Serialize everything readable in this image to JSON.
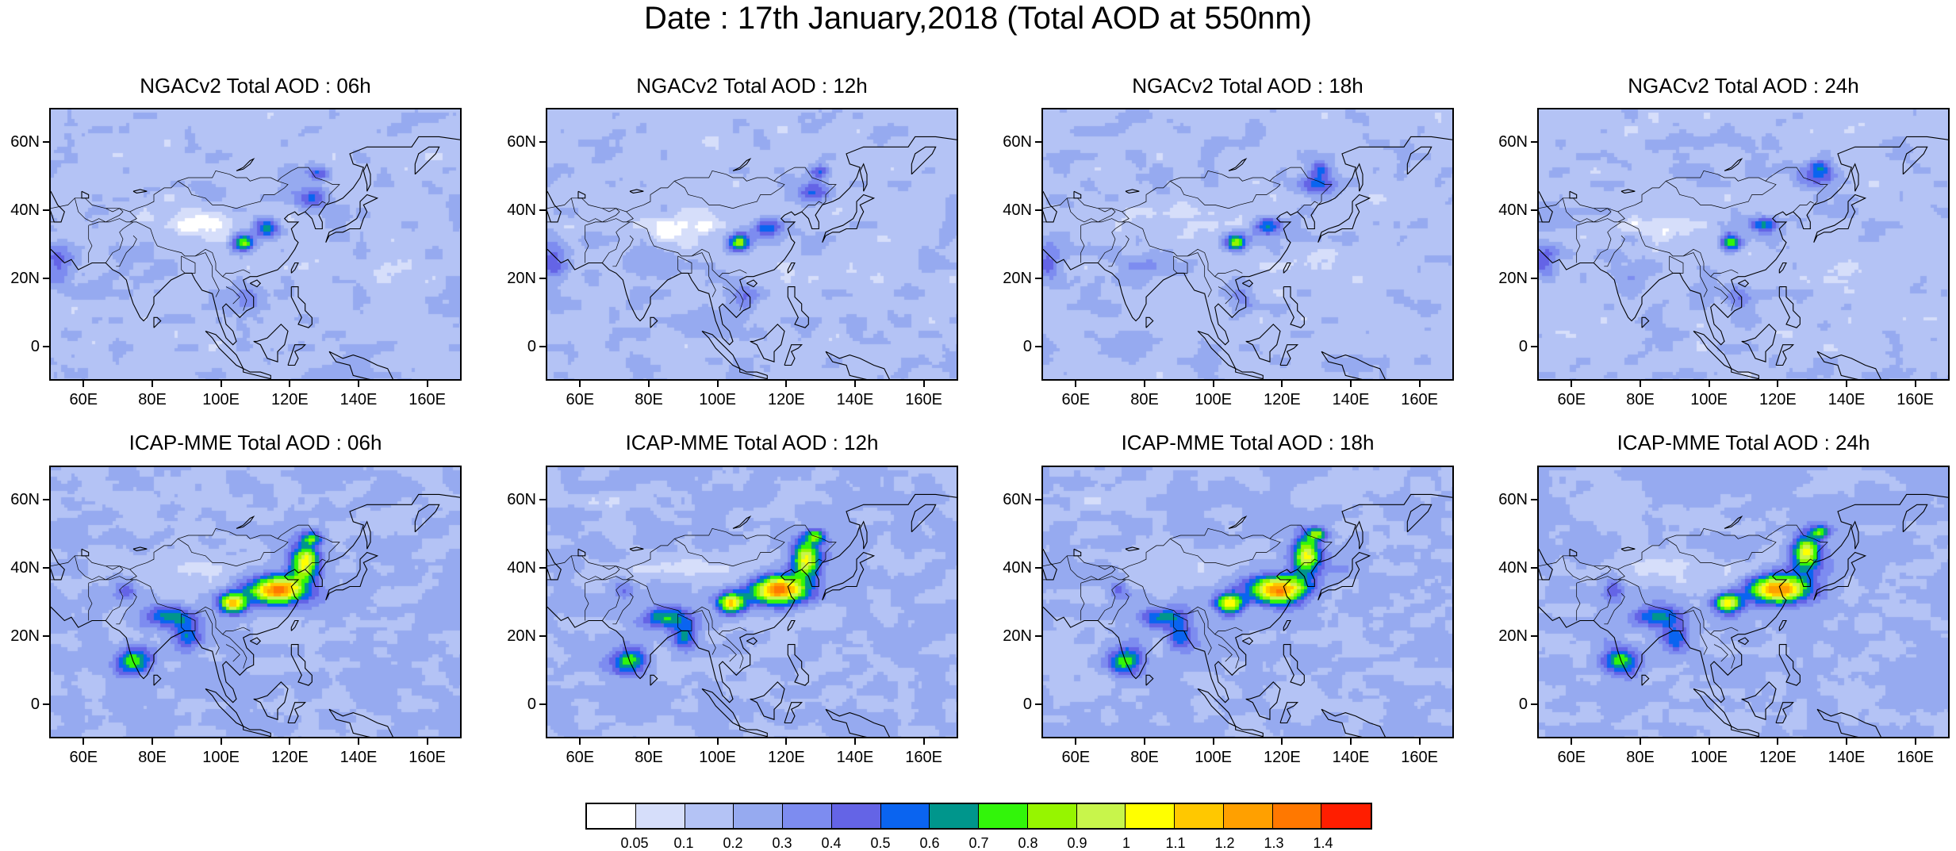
{
  "title": "Date : 17th January,2018 (Total AOD at 550nm)",
  "panels": [
    {
      "title": "NGACv2 Total AOD : 06h",
      "model": "NGACv2",
      "hour": 6
    },
    {
      "title": "NGACv2 Total AOD : 12h",
      "model": "NGACv2",
      "hour": 12
    },
    {
      "title": "NGACv2 Total AOD : 18h",
      "model": "NGACv2",
      "hour": 18
    },
    {
      "title": "NGACv2 Total AOD : 24h",
      "model": "NGACv2",
      "hour": 24
    },
    {
      "title": "ICAP-MME Total AOD : 06h",
      "model": "ICAP-MME",
      "hour": 6
    },
    {
      "title": "ICAP-MME Total AOD : 12h",
      "model": "ICAP-MME",
      "hour": 12
    },
    {
      "title": "ICAP-MME Total AOD : 18h",
      "model": "ICAP-MME",
      "hour": 18
    },
    {
      "title": "ICAP-MME Total AOD : 24h",
      "model": "ICAP-MME",
      "hour": 24
    }
  ],
  "axes": {
    "lat_labels": [
      "60N",
      "40N",
      "20N",
      "0"
    ],
    "lat_values": [
      60,
      40,
      20,
      0
    ],
    "lon_labels": [
      "60E",
      "80E",
      "100E",
      "120E",
      "140E",
      "160E"
    ],
    "lon_values": [
      60,
      80,
      100,
      120,
      140,
      160
    ],
    "lon_range": [
      50,
      170
    ],
    "lat_range": [
      -10,
      70
    ]
  },
  "colorbar": {
    "labels": [
      "0.05",
      "0.1",
      "0.2",
      "0.3",
      "0.4",
      "0.5",
      "0.6",
      "0.7",
      "0.8",
      "0.9",
      "1",
      "1.1",
      "1.2",
      "1.3",
      "1.4"
    ],
    "colors": [
      "#ffffff",
      "#d6defa",
      "#b4c3f5",
      "#96aaf0",
      "#7d8cf0",
      "#6464e6",
      "#0a64f0",
      "#00968c",
      "#32f50a",
      "#96f500",
      "#c8f54b",
      "#ffff00",
      "#ffc800",
      "#ffa000",
      "#ff7800",
      "#ff1e00"
    ]
  }
}
